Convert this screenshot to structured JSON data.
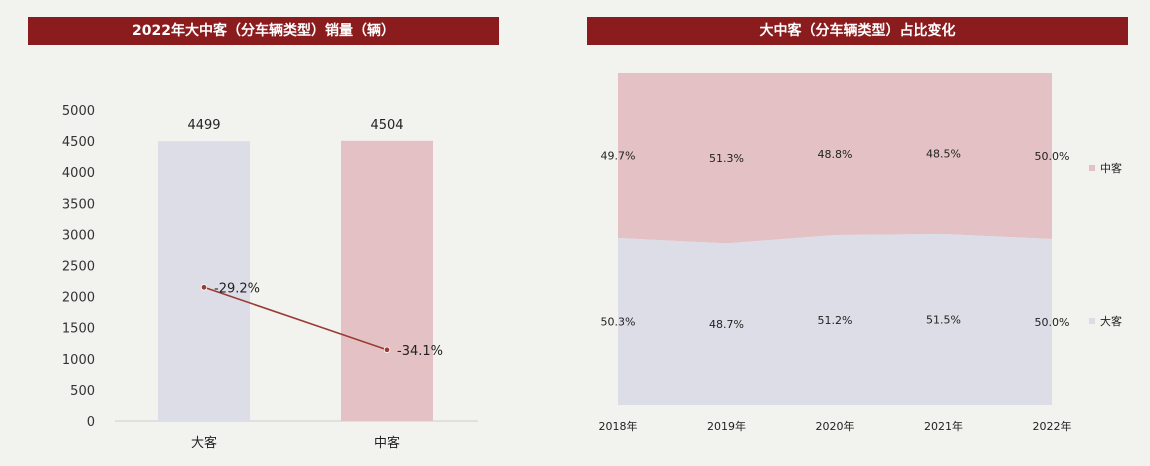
{
  "charts": {
    "left_title": "2022年大中客（分车辆类型）销量（辆）",
    "right_title": "大中客（分车辆类型）占比变化"
  },
  "chart_data": [
    {
      "type": "bar",
      "title": "2022年大中客（分车辆类型）销量（辆）",
      "categories": [
        "大客",
        "中客"
      ],
      "values": [
        4499,
        4504
      ],
      "value_labels": [
        "4499",
        "4504"
      ],
      "bar_colors": [
        "#dcdde6",
        "#e3c1c4"
      ],
      "ylim": [
        0,
        5000
      ],
      "yticks": [
        "0",
        "500",
        "1000",
        "1500",
        "2000",
        "2500",
        "3000",
        "3500",
        "4000",
        "4500",
        "5000"
      ],
      "line_series": {
        "values": [
          -29.2,
          -34.1
        ],
        "labels": [
          "-29.2%",
          "-34.1%"
        ],
        "color": "#9b3a34"
      },
      "grid": false
    },
    {
      "type": "area",
      "title": "大中客（分车辆类型）占比变化",
      "categories": [
        "2018年",
        "2019年",
        "2020年",
        "2021年",
        "2022年"
      ],
      "stacked_percent": true,
      "series": [
        {
          "name": "大客",
          "values": [
            50.3,
            48.7,
            51.2,
            51.5,
            50.0
          ],
          "labels": [
            "50.3%",
            "48.7%",
            "51.2%",
            "51.5%",
            "50.0%"
          ],
          "color": "#dcdde6"
        },
        {
          "name": "中客",
          "values": [
            49.7,
            51.3,
            48.8,
            48.5,
            50.0
          ],
          "labels": [
            "49.7%",
            "51.3%",
            "48.8%",
            "48.5%",
            "50.0%"
          ],
          "color": "#e3c1c4"
        }
      ],
      "legend": "right",
      "ylim": [
        0,
        100
      ]
    }
  ]
}
